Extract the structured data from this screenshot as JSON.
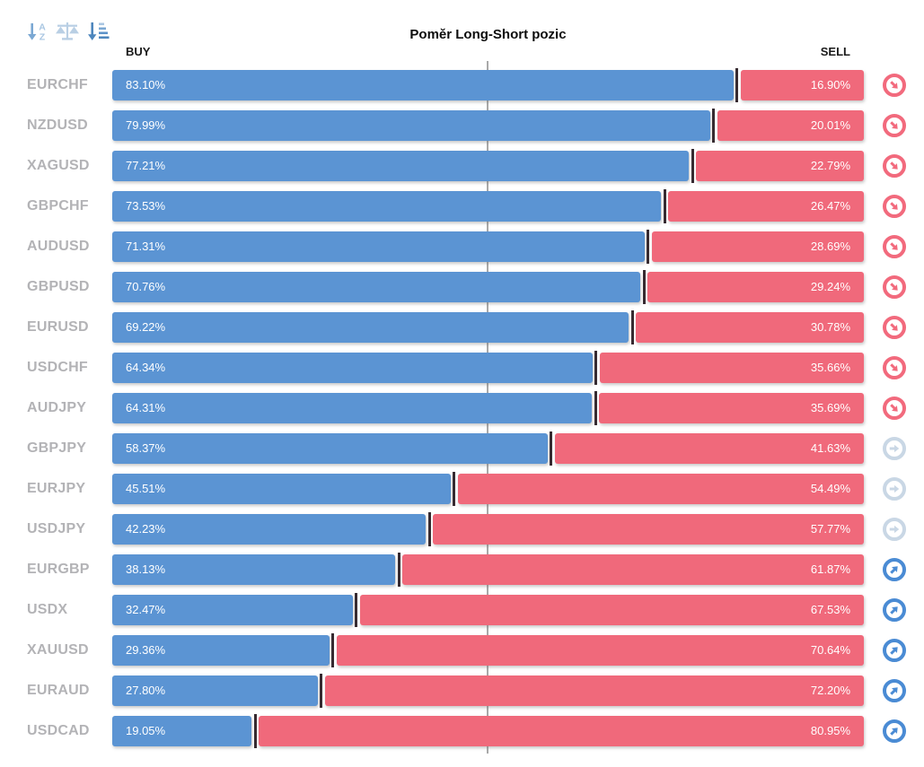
{
  "toolbar": {
    "icons": [
      {
        "name": "sort-alphabetical-icon",
        "glyph": "↓AZ"
      },
      {
        "name": "balance-scales-icon",
        "glyph": "⚖"
      },
      {
        "name": "sort-by-amount-icon",
        "glyph": "↓≡"
      }
    ]
  },
  "chart_data": {
    "type": "bar",
    "orientation": "horizontal-stacked",
    "title": "Poměr Long-Short pozic",
    "buy_header": "BUY",
    "sell_header": "SELL",
    "unit": "%",
    "xlim": [
      0,
      100
    ],
    "center_marker_percent": 50,
    "grid": false,
    "legend": false,
    "colors": {
      "buy_bar": "#5b94d3",
      "sell_bar": "#f0697b",
      "bar_divider": "#372b31",
      "pair_label": "#b3b3b6",
      "center_line": "#a9a9a9",
      "signal_sell": "#f26a7d",
      "signal_neutral": "#c9d7e5",
      "signal_buy": "#4a8bd4"
    },
    "signal_legend": {
      "sell": "arrow-down-right",
      "neutral": "arrow-right",
      "buy": "arrow-up-right"
    },
    "rows": [
      {
        "pair": "EURCHF",
        "buy": 83.1,
        "sell": 16.9,
        "buy_label": "83.10%",
        "sell_label": "16.90%",
        "signal": "sell"
      },
      {
        "pair": "NZDUSD",
        "buy": 79.99,
        "sell": 20.01,
        "buy_label": "79.99%",
        "sell_label": "20.01%",
        "signal": "sell"
      },
      {
        "pair": "XAGUSD",
        "buy": 77.21,
        "sell": 22.79,
        "buy_label": "77.21%",
        "sell_label": "22.79%",
        "signal": "sell"
      },
      {
        "pair": "GBPCHF",
        "buy": 73.53,
        "sell": 26.47,
        "buy_label": "73.53%",
        "sell_label": "26.47%",
        "signal": "sell"
      },
      {
        "pair": "AUDUSD",
        "buy": 71.31,
        "sell": 28.69,
        "buy_label": "71.31%",
        "sell_label": "28.69%",
        "signal": "sell"
      },
      {
        "pair": "GBPUSD",
        "buy": 70.76,
        "sell": 29.24,
        "buy_label": "70.76%",
        "sell_label": "29.24%",
        "signal": "sell"
      },
      {
        "pair": "EURUSD",
        "buy": 69.22,
        "sell": 30.78,
        "buy_label": "69.22%",
        "sell_label": "30.78%",
        "signal": "sell"
      },
      {
        "pair": "USDCHF",
        "buy": 64.34,
        "sell": 35.66,
        "buy_label": "64.34%",
        "sell_label": "35.66%",
        "signal": "sell"
      },
      {
        "pair": "AUDJPY",
        "buy": 64.31,
        "sell": 35.69,
        "buy_label": "64.31%",
        "sell_label": "35.69%",
        "signal": "sell"
      },
      {
        "pair": "GBPJPY",
        "buy": 58.37,
        "sell": 41.63,
        "buy_label": "58.37%",
        "sell_label": "41.63%",
        "signal": "neutral"
      },
      {
        "pair": "EURJPY",
        "buy": 45.51,
        "sell": 54.49,
        "buy_label": "45.51%",
        "sell_label": "54.49%",
        "signal": "neutral"
      },
      {
        "pair": "USDJPY",
        "buy": 42.23,
        "sell": 57.77,
        "buy_label": "42.23%",
        "sell_label": "57.77%",
        "signal": "neutral"
      },
      {
        "pair": "EURGBP",
        "buy": 38.13,
        "sell": 61.87,
        "buy_label": "38.13%",
        "sell_label": "61.87%",
        "signal": "buy"
      },
      {
        "pair": "USDX",
        "buy": 32.47,
        "sell": 67.53,
        "buy_label": "32.47%",
        "sell_label": "67.53%",
        "signal": "buy"
      },
      {
        "pair": "XAUUSD",
        "buy": 29.36,
        "sell": 70.64,
        "buy_label": "29.36%",
        "sell_label": "70.64%",
        "signal": "buy"
      },
      {
        "pair": "EURAUD",
        "buy": 27.8,
        "sell": 72.2,
        "buy_label": "27.80%",
        "sell_label": "72.20%",
        "signal": "buy"
      },
      {
        "pair": "USDCAD",
        "buy": 19.05,
        "sell": 80.95,
        "buy_label": "19.05%",
        "sell_label": "80.95%",
        "signal": "buy"
      }
    ]
  }
}
